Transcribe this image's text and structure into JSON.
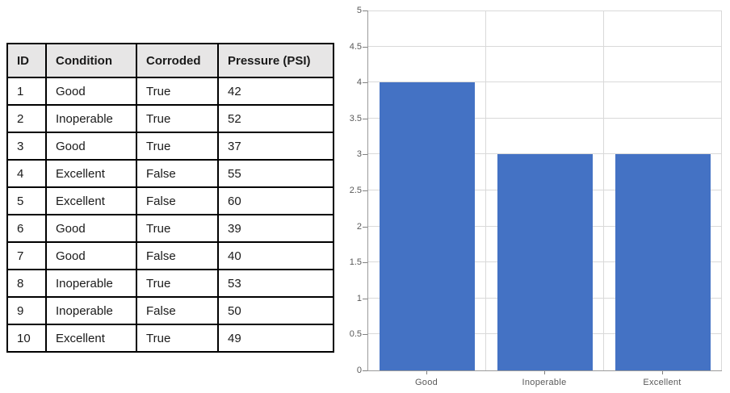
{
  "table": {
    "columns": [
      "ID",
      "Condition",
      "Corroded",
      "Pressure (PSI)"
    ],
    "rows": [
      [
        "1",
        "Good",
        "True",
        "42"
      ],
      [
        "2",
        "Inoperable",
        "True",
        "52"
      ],
      [
        "3",
        "Good",
        "True",
        "37"
      ],
      [
        "4",
        "Excellent",
        "False",
        "55"
      ],
      [
        "5",
        "Excellent",
        "False",
        "60"
      ],
      [
        "6",
        "Good",
        "True",
        "39"
      ],
      [
        "7",
        "Good",
        "False",
        "40"
      ],
      [
        "8",
        "Inoperable",
        "True",
        "53"
      ],
      [
        "9",
        "Inoperable",
        "False",
        "50"
      ],
      [
        "10",
        "Excellent",
        "True",
        "49"
      ]
    ],
    "header_bg": "#e7e6e6",
    "border_color": "#000000"
  },
  "chart_data": {
    "type": "bar",
    "categories": [
      "Good",
      "Inoperable",
      "Excellent"
    ],
    "values": [
      4,
      3,
      3
    ],
    "title": "",
    "xlabel": "",
    "ylabel": "",
    "ylim": [
      0,
      5
    ],
    "ytick_step": 0.5,
    "grid": true,
    "legend": false,
    "bar_color": "#4472c4",
    "gridline_color": "#d9d9d9",
    "axis_color": "#9b9b9b",
    "tick_color": "#808080",
    "label_color": "#595959"
  }
}
